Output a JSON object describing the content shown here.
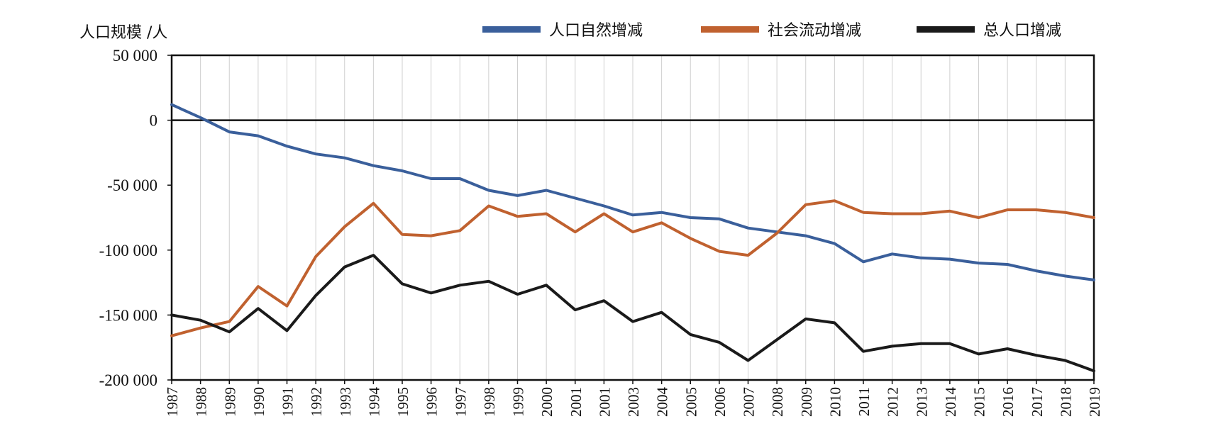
{
  "chart_data": {
    "type": "line",
    "ylabel": "人口规模 /人",
    "ylim": [
      -200000,
      50000
    ],
    "y_ticks": [
      50000,
      0,
      -50000,
      -100000,
      -150000,
      -200000
    ],
    "y_tick_labels": [
      "50 000",
      "0",
      "-50 000",
      "-100 000",
      "-150 000",
      "-200 000"
    ],
    "categories": [
      "1987",
      "1988",
      "1989",
      "1990",
      "1991",
      "1992",
      "1993",
      "1994",
      "1995",
      "1996",
      "1997",
      "1998",
      "1999",
      "2000",
      "2001",
      "2001",
      "2003",
      "2004",
      "2005",
      "2006",
      "2007",
      "2008",
      "2009",
      "2010",
      "2011",
      "2012",
      "2013",
      "2014",
      "2015",
      "2016",
      "2017",
      "2018",
      "2019"
    ],
    "grid": "vertical",
    "legend_position": "top",
    "series": [
      {
        "name": "人口自然增减",
        "color": "#3a5f9b",
        "values": [
          12000,
          2000,
          -9000,
          -12000,
          -20000,
          -26000,
          -29000,
          -35000,
          -39000,
          -45000,
          -45000,
          -54000,
          -58000,
          -54000,
          -60000,
          -66000,
          -73000,
          -71000,
          -75000,
          -76000,
          -83000,
          -86000,
          -89000,
          -95000,
          -109000,
          -103000,
          -106000,
          -107000,
          -110000,
          -111000,
          -116000,
          -120000,
          -123000
        ]
      },
      {
        "name": "社会流动增减",
        "color": "#c0612f",
        "values": [
          -166000,
          -160000,
          -155000,
          -128000,
          -143000,
          -105000,
          -82000,
          -64000,
          -88000,
          -89000,
          -85000,
          -66000,
          -74000,
          -72000,
          -86000,
          -72000,
          -86000,
          -79000,
          -91000,
          -101000,
          -104000,
          -87000,
          -65000,
          -62000,
          -71000,
          -72000,
          -72000,
          -70000,
          -75000,
          -69000,
          -69000,
          -71000,
          -75000
        ]
      },
      {
        "name": "总人口增减",
        "color": "#1a1a1a",
        "values": [
          -150000,
          -154000,
          -163000,
          -145000,
          -162000,
          -135000,
          -113000,
          -104000,
          -126000,
          -133000,
          -127000,
          -124000,
          -134000,
          -127000,
          -146000,
          -139000,
          -155000,
          -148000,
          -165000,
          -171000,
          -185000,
          -169000,
          -153000,
          -156000,
          -178000,
          -174000,
          -172000,
          -172000,
          -180000,
          -176000,
          -181000,
          -185000,
          -193000
        ]
      }
    ]
  }
}
